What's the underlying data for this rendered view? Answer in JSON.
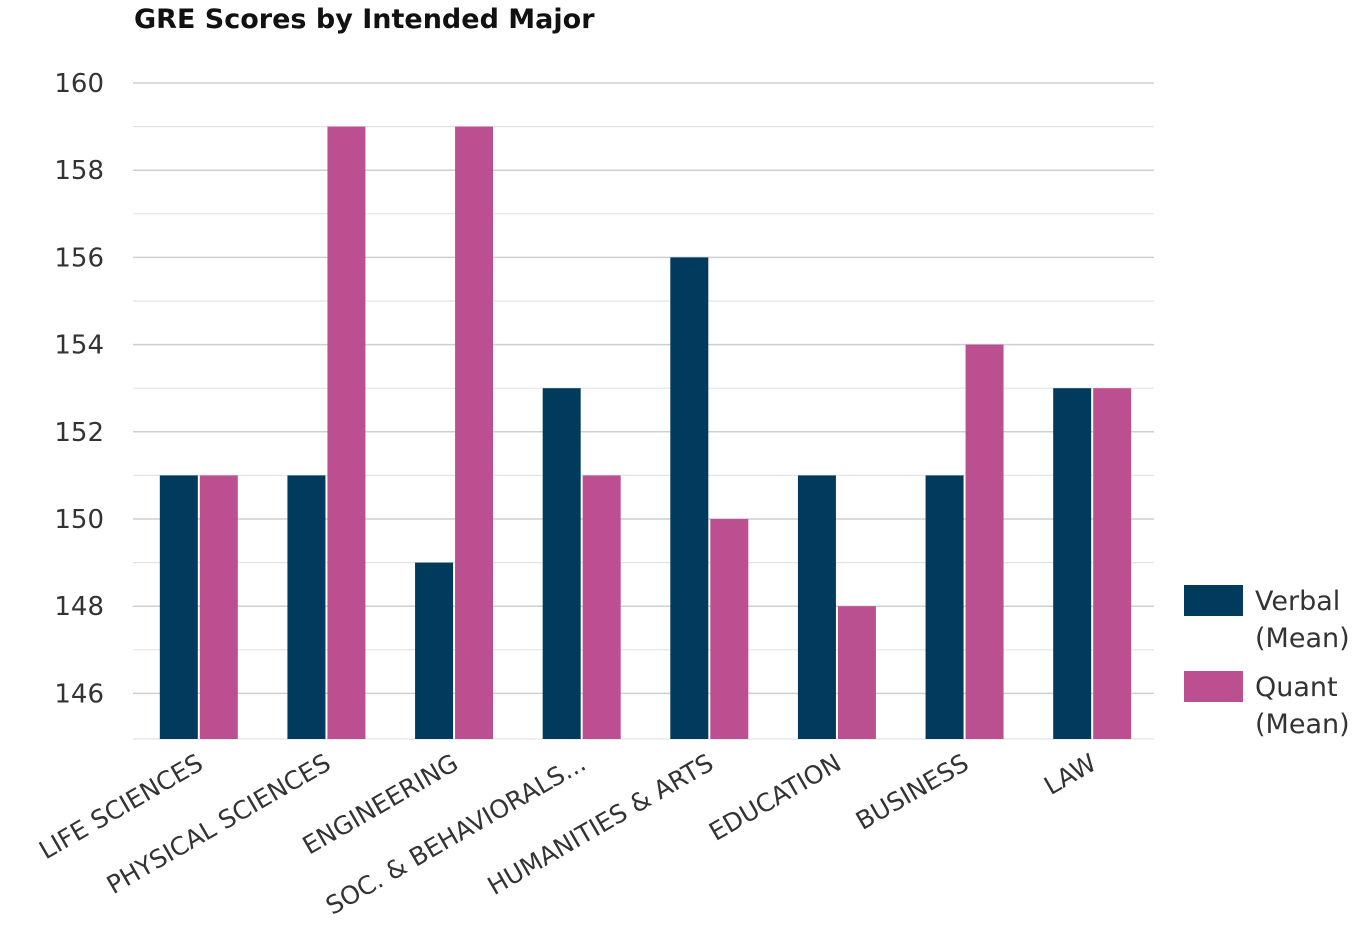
{
  "chart_data": {
    "type": "bar",
    "title": "GRE Scores by Intended Major",
    "xlabel": "",
    "ylabel": "",
    "categories": [
      "LIFE SCIENCES",
      "PHYSICAL SCIENCES",
      "ENGINEERING",
      "SOC. & BEHAVIORALS...",
      "HUMANITIES & ARTS",
      "EDUCATION",
      "BUSINESS",
      "LAW"
    ],
    "series": [
      {
        "name": "Verbal (Mean)",
        "color": "#003a5c",
        "values": [
          151,
          151,
          149,
          153,
          156,
          151,
          151,
          153
        ]
      },
      {
        "name": "Quant (Mean)",
        "color": "#bc4f8f",
        "values": [
          151,
          159,
          159,
          151,
          150,
          148,
          154,
          153
        ]
      }
    ],
    "ylim": [
      145,
      160
    ],
    "yticks": [
      146,
      148,
      150,
      152,
      154,
      156,
      158,
      160
    ],
    "grid": true,
    "legend_position": "right"
  }
}
